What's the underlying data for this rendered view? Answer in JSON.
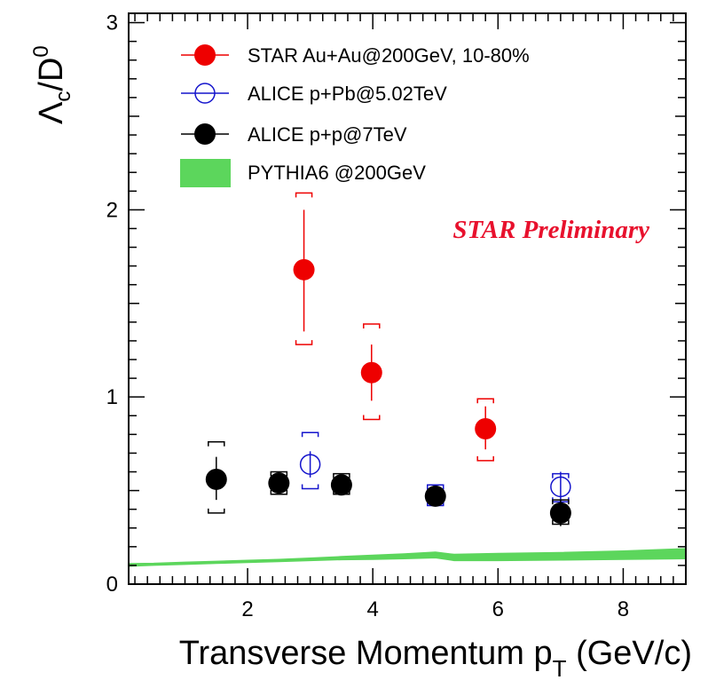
{
  "chart_data": {
    "type": "scatter",
    "xlabel": "Transverse Momentum p",
    "xlabel_sub": "T",
    "xlabel_unit": " (GeV/c)",
    "ylabel": "Λ",
    "ylabel_sub": "c",
    "ylabel_mid": "/D",
    "ylabel_sup": "0",
    "xlim": [
      0.1,
      9.0
    ],
    "ylim": [
      0,
      3.05
    ],
    "x_ticks": [
      2,
      4,
      6,
      8
    ],
    "y_ticks": [
      0,
      1,
      2,
      3
    ],
    "grid": false,
    "legend_position": "top-left",
    "annotation": {
      "text": "STAR Preliminary",
      "color": "#e8112d"
    },
    "series": [
      {
        "name": "STAR Au+Au@200GeV, 10-80%",
        "marker": "filled-circle",
        "color": "#ee0000",
        "points": [
          {
            "x": 2.9,
            "y": 1.68,
            "stat_lo": 1.35,
            "stat_hi": 2.0,
            "sys_lo": 1.28,
            "sys_hi": 2.09
          },
          {
            "x": 3.98,
            "y": 1.13,
            "stat_lo": 0.98,
            "stat_hi": 1.28,
            "sys_lo": 0.88,
            "sys_hi": 1.39
          },
          {
            "x": 5.8,
            "y": 0.83,
            "stat_lo": 0.72,
            "stat_hi": 0.95,
            "sys_lo": 0.66,
            "sys_hi": 0.99
          }
        ]
      },
      {
        "name": "ALICE p+Pb@5.02TeV",
        "marker": "open-circle",
        "color": "#1414cc",
        "points": [
          {
            "x": 3.0,
            "y": 0.64,
            "stat_lo": 0.57,
            "stat_hi": 0.71,
            "sys_lo": 0.51,
            "sys_hi": 0.81
          },
          {
            "x": 5.0,
            "y": 0.47,
            "stat_lo": 0.44,
            "stat_hi": 0.5,
            "sys_lo": 0.42,
            "sys_hi": 0.53
          },
          {
            "x": 7.0,
            "y": 0.52,
            "stat_lo": 0.44,
            "stat_hi": 0.6,
            "sys_lo": 0.44,
            "sys_hi": 0.59
          }
        ]
      },
      {
        "name": "ALICE p+p@7TeV",
        "marker": "filled-circle",
        "color": "#000000",
        "points": [
          {
            "x": 1.5,
            "y": 0.56,
            "stat_lo": 0.45,
            "stat_hi": 0.68,
            "sys_lo": 0.38,
            "sys_hi": 0.76
          },
          {
            "x": 2.5,
            "y": 0.54,
            "stat_lo": 0.48,
            "stat_hi": 0.6,
            "sys_lo": 0.48,
            "sys_hi": 0.6
          },
          {
            "x": 3.5,
            "y": 0.53,
            "stat_lo": 0.48,
            "stat_hi": 0.58,
            "sys_lo": 0.48,
            "sys_hi": 0.59
          },
          {
            "x": 5.0,
            "y": 0.47,
            "stat_lo": 0.44,
            "stat_hi": 0.5,
            "sys_lo": 0.44,
            "sys_hi": 0.5
          },
          {
            "x": 7.0,
            "y": 0.38,
            "stat_lo": 0.31,
            "stat_hi": 0.45,
            "sys_lo": 0.32,
            "sys_hi": 0.45
          }
        ]
      },
      {
        "name": "PYTHIA6 @200GeV",
        "type": "band",
        "color": "#5cd65c",
        "x": [
          0.1,
          0.5,
          1.0,
          1.5,
          2.0,
          2.5,
          3.0,
          3.5,
          4.0,
          4.5,
          5.0,
          5.3,
          6.0,
          7.0,
          8.0,
          9.0
        ],
        "lower": [
          0.095,
          0.1,
          0.105,
          0.11,
          0.115,
          0.12,
          0.125,
          0.13,
          0.132,
          0.135,
          0.14,
          0.125,
          0.125,
          0.128,
          0.132,
          0.135
        ],
        "upper": [
          0.11,
          0.112,
          0.118,
          0.123,
          0.128,
          0.133,
          0.14,
          0.148,
          0.155,
          0.162,
          0.172,
          0.16,
          0.165,
          0.17,
          0.178,
          0.19
        ]
      }
    ]
  }
}
